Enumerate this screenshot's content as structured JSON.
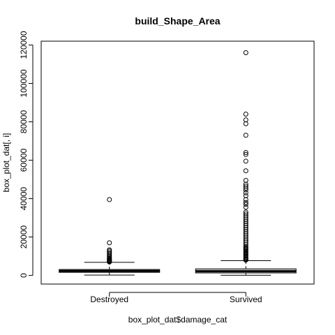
{
  "chart_data": {
    "type": "box",
    "title": "build_Shape_Area",
    "xlabel": "box_plot_dat$damage_cat",
    "ylabel": "box_plot_dat[, i]",
    "ylim": [
      -4500,
      122000
    ],
    "yticks": [
      0,
      20000,
      40000,
      60000,
      80000,
      100000,
      120000
    ],
    "ytick_labels": [
      "0",
      "20000",
      "40000",
      "60000",
      "80000",
      "100000",
      "120000"
    ],
    "categories": [
      "Destroyed",
      "Survived"
    ],
    "boxes": [
      {
        "name": "Destroyed",
        "whisker_low": 200,
        "q1": 1600,
        "median": 2300,
        "q3": 3100,
        "whisker_high": 6800,
        "outliers": [
          39500,
          17000,
          13300,
          12700,
          12000,
          11300,
          10500,
          9900,
          9300,
          8800,
          8400,
          8000,
          7700,
          7400,
          7200,
          7000
        ]
      },
      {
        "name": "Survived",
        "whisker_low": 100,
        "q1": 1300,
        "median": 2200,
        "q3": 3400,
        "whisker_high": 7700,
        "outliers": [
          116000,
          84000,
          81000,
          79000,
          73000,
          64000,
          63000,
          59500,
          54500,
          49500,
          47500,
          46500,
          45500,
          44500,
          43000,
          41500,
          39500,
          38000,
          37000,
          35500,
          33000,
          32000,
          31000,
          30000,
          29000,
          28000,
          27000,
          26000,
          25000,
          24000,
          23000,
          22000,
          21000,
          20000,
          19000,
          18000,
          17000,
          16000,
          15000,
          14500,
          14000,
          13500,
          13000,
          12500,
          12000,
          11500,
          11000,
          10500,
          10000,
          9500,
          9000,
          8500,
          8200,
          8000
        ]
      }
    ]
  }
}
